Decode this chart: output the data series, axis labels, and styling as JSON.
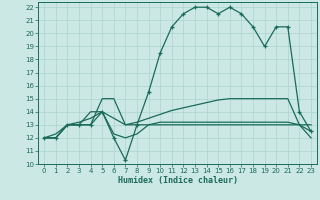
{
  "title": "",
  "xlabel": "Humidex (Indice chaleur)",
  "bg_color": "#cce8e4",
  "line_color": "#1a6b5a",
  "grid_color": "#aad4cc",
  "xlim": [
    -0.5,
    23.5
  ],
  "ylim": [
    10,
    22.4
  ],
  "xticks": [
    0,
    1,
    2,
    3,
    4,
    5,
    6,
    7,
    8,
    9,
    10,
    11,
    12,
    13,
    14,
    15,
    16,
    17,
    18,
    19,
    20,
    21,
    22,
    23
  ],
  "yticks": [
    10,
    11,
    12,
    13,
    14,
    15,
    16,
    17,
    18,
    19,
    20,
    21,
    22
  ],
  "lines": [
    {
      "x": [
        0,
        1,
        2,
        3,
        4,
        5,
        6,
        7,
        8,
        9,
        10,
        11,
        12,
        13,
        14,
        15,
        16,
        17,
        18,
        19,
        20,
        21,
        22,
        23
      ],
      "y": [
        12,
        12,
        13,
        13,
        13,
        14,
        12,
        10.3,
        13,
        15.5,
        18.5,
        20.5,
        21.5,
        22,
        22,
        21.5,
        22,
        21.5,
        20.5,
        19,
        20.5,
        20.5,
        14,
        12.5
      ],
      "marker": "+",
      "lw": 0.9
    },
    {
      "x": [
        0,
        1,
        2,
        3,
        4,
        5,
        6,
        7,
        8,
        9,
        10,
        11,
        12,
        13,
        14,
        15,
        16,
        17,
        18,
        19,
        20,
        21,
        22,
        23
      ],
      "y": [
        12,
        12,
        13,
        13,
        13,
        15,
        15,
        13,
        13,
        13,
        13,
        13,
        13,
        13,
        13,
        13,
        13,
        13,
        13,
        13,
        13,
        13,
        13,
        13
      ],
      "marker": null,
      "lw": 0.9
    },
    {
      "x": [
        0,
        1,
        2,
        3,
        4,
        5,
        6,
        7,
        8,
        9,
        10,
        11,
        12,
        13,
        14,
        15,
        16,
        17,
        18,
        19,
        20,
        21,
        22,
        23
      ],
      "y": [
        12,
        12.3,
        13,
        13.2,
        13.5,
        14,
        13.5,
        13,
        13.2,
        13.5,
        13.8,
        14.1,
        14.3,
        14.5,
        14.7,
        14.9,
        15,
        15,
        15,
        15,
        15,
        15,
        13,
        12.5
      ],
      "marker": null,
      "lw": 0.9
    },
    {
      "x": [
        0,
        1,
        2,
        3,
        4,
        5,
        6,
        7,
        8,
        9,
        10,
        11,
        12,
        13,
        14,
        15,
        16,
        17,
        18,
        19,
        20,
        21,
        22,
        23
      ],
      "y": [
        12,
        12,
        13,
        13,
        14,
        14,
        12.3,
        12,
        12.3,
        13,
        13.2,
        13.2,
        13.2,
        13.2,
        13.2,
        13.2,
        13.2,
        13.2,
        13.2,
        13.2,
        13.2,
        13.2,
        13,
        12
      ],
      "marker": null,
      "lw": 0.9
    }
  ]
}
